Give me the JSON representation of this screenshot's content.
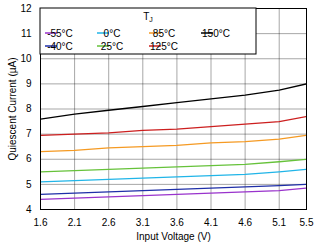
{
  "chart_data": {
    "type": "line",
    "x_label": "Input Voltage (V)",
    "y_label": "Quiescent Current (µA)",
    "legend_title": "TJ",
    "x": [
      1.6,
      2.1,
      2.6,
      3.1,
      3.6,
      4.1,
      4.6,
      5.1,
      5.5
    ],
    "series": [
      {
        "name": "-55°C",
        "color": "#9933cc",
        "values": [
          4.4,
          4.45,
          4.5,
          4.55,
          4.6,
          4.65,
          4.7,
          4.75,
          4.85
        ]
      },
      {
        "name": "-40°C",
        "color": "#1f2fa8",
        "values": [
          4.6,
          4.65,
          4.7,
          4.75,
          4.8,
          4.85,
          4.9,
          4.95,
          5.0
        ]
      },
      {
        "name": "0°C",
        "color": "#21b5e8",
        "values": [
          5.1,
          5.15,
          5.2,
          5.25,
          5.3,
          5.35,
          5.4,
          5.5,
          5.6
        ]
      },
      {
        "name": "25°C",
        "color": "#66c23a",
        "values": [
          5.5,
          5.55,
          5.6,
          5.65,
          5.7,
          5.75,
          5.8,
          5.9,
          6.0
        ]
      },
      {
        "name": "85°C",
        "color": "#f59a23",
        "values": [
          6.3,
          6.35,
          6.45,
          6.5,
          6.55,
          6.65,
          6.7,
          6.8,
          6.95
        ]
      },
      {
        "name": "125°C",
        "color": "#cc1f1f",
        "values": [
          6.95,
          7.0,
          7.05,
          7.15,
          7.2,
          7.3,
          7.4,
          7.5,
          7.7
        ]
      },
      {
        "name": "150°C",
        "color": "#000000",
        "values": [
          7.6,
          7.8,
          7.95,
          8.1,
          8.25,
          8.4,
          8.55,
          8.75,
          9.0
        ]
      }
    ],
    "xlim": [
      1.6,
      5.5
    ],
    "xticks": [
      1.6,
      2.1,
      2.6,
      3.1,
      3.6,
      4.1,
      4.6,
      5.1,
      5.5
    ],
    "ylim": [
      4,
      12
    ],
    "yticks": [
      4,
      5,
      6,
      7,
      8,
      9,
      10,
      11,
      12
    ],
    "grid": true,
    "legend": "top-left"
  }
}
